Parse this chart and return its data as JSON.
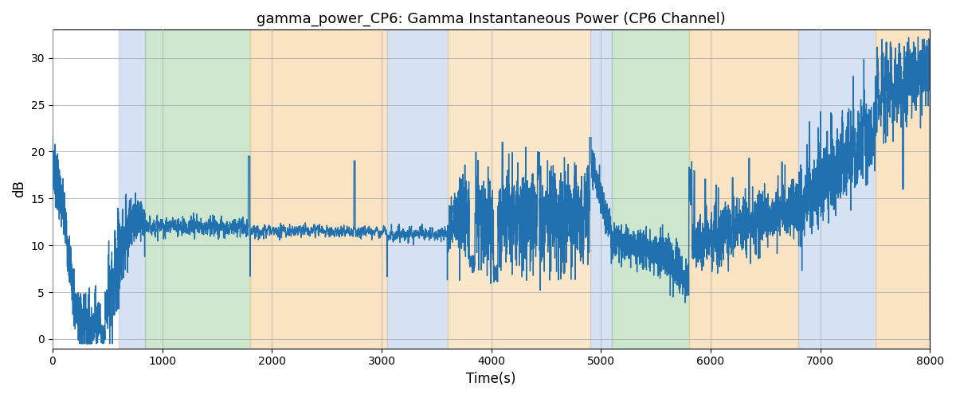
{
  "title": "gamma_power_CP6: Gamma Instantaneous Power (CP6 Channel)",
  "xlabel": "Time(s)",
  "ylabel": "dB",
  "xlim": [
    0,
    8000
  ],
  "ylim": [
    -1,
    33
  ],
  "yticks": [
    0,
    5,
    10,
    15,
    20,
    25,
    30
  ],
  "xticks": [
    0,
    1000,
    2000,
    3000,
    4000,
    5000,
    6000,
    7000,
    8000
  ],
  "line_color": "#2170b0",
  "line_width": 1.0,
  "background_color": "#ffffff",
  "grid_color": "#b0b0b0",
  "bands": [
    {
      "start": 600,
      "end": 840,
      "color": "#aec6e8",
      "alpha": 0.5
    },
    {
      "start": 840,
      "end": 1800,
      "color": "#90c990",
      "alpha": 0.45
    },
    {
      "start": 1800,
      "end": 3050,
      "color": "#f5c888",
      "alpha": 0.5
    },
    {
      "start": 3050,
      "end": 3600,
      "color": "#aec6e8",
      "alpha": 0.5
    },
    {
      "start": 3600,
      "end": 4900,
      "color": "#f5c888",
      "alpha": 0.45
    },
    {
      "start": 4900,
      "end": 5100,
      "color": "#aec6e8",
      "alpha": 0.5
    },
    {
      "start": 5100,
      "end": 5800,
      "color": "#90c990",
      "alpha": 0.45
    },
    {
      "start": 5800,
      "end": 6800,
      "color": "#f5c888",
      "alpha": 0.5
    },
    {
      "start": 6800,
      "end": 7500,
      "color": "#aec6e8",
      "alpha": 0.5
    },
    {
      "start": 7500,
      "end": 8050,
      "color": "#f5c888",
      "alpha": 0.5
    }
  ],
  "figsize": [
    12,
    5
  ],
  "dpi": 100
}
